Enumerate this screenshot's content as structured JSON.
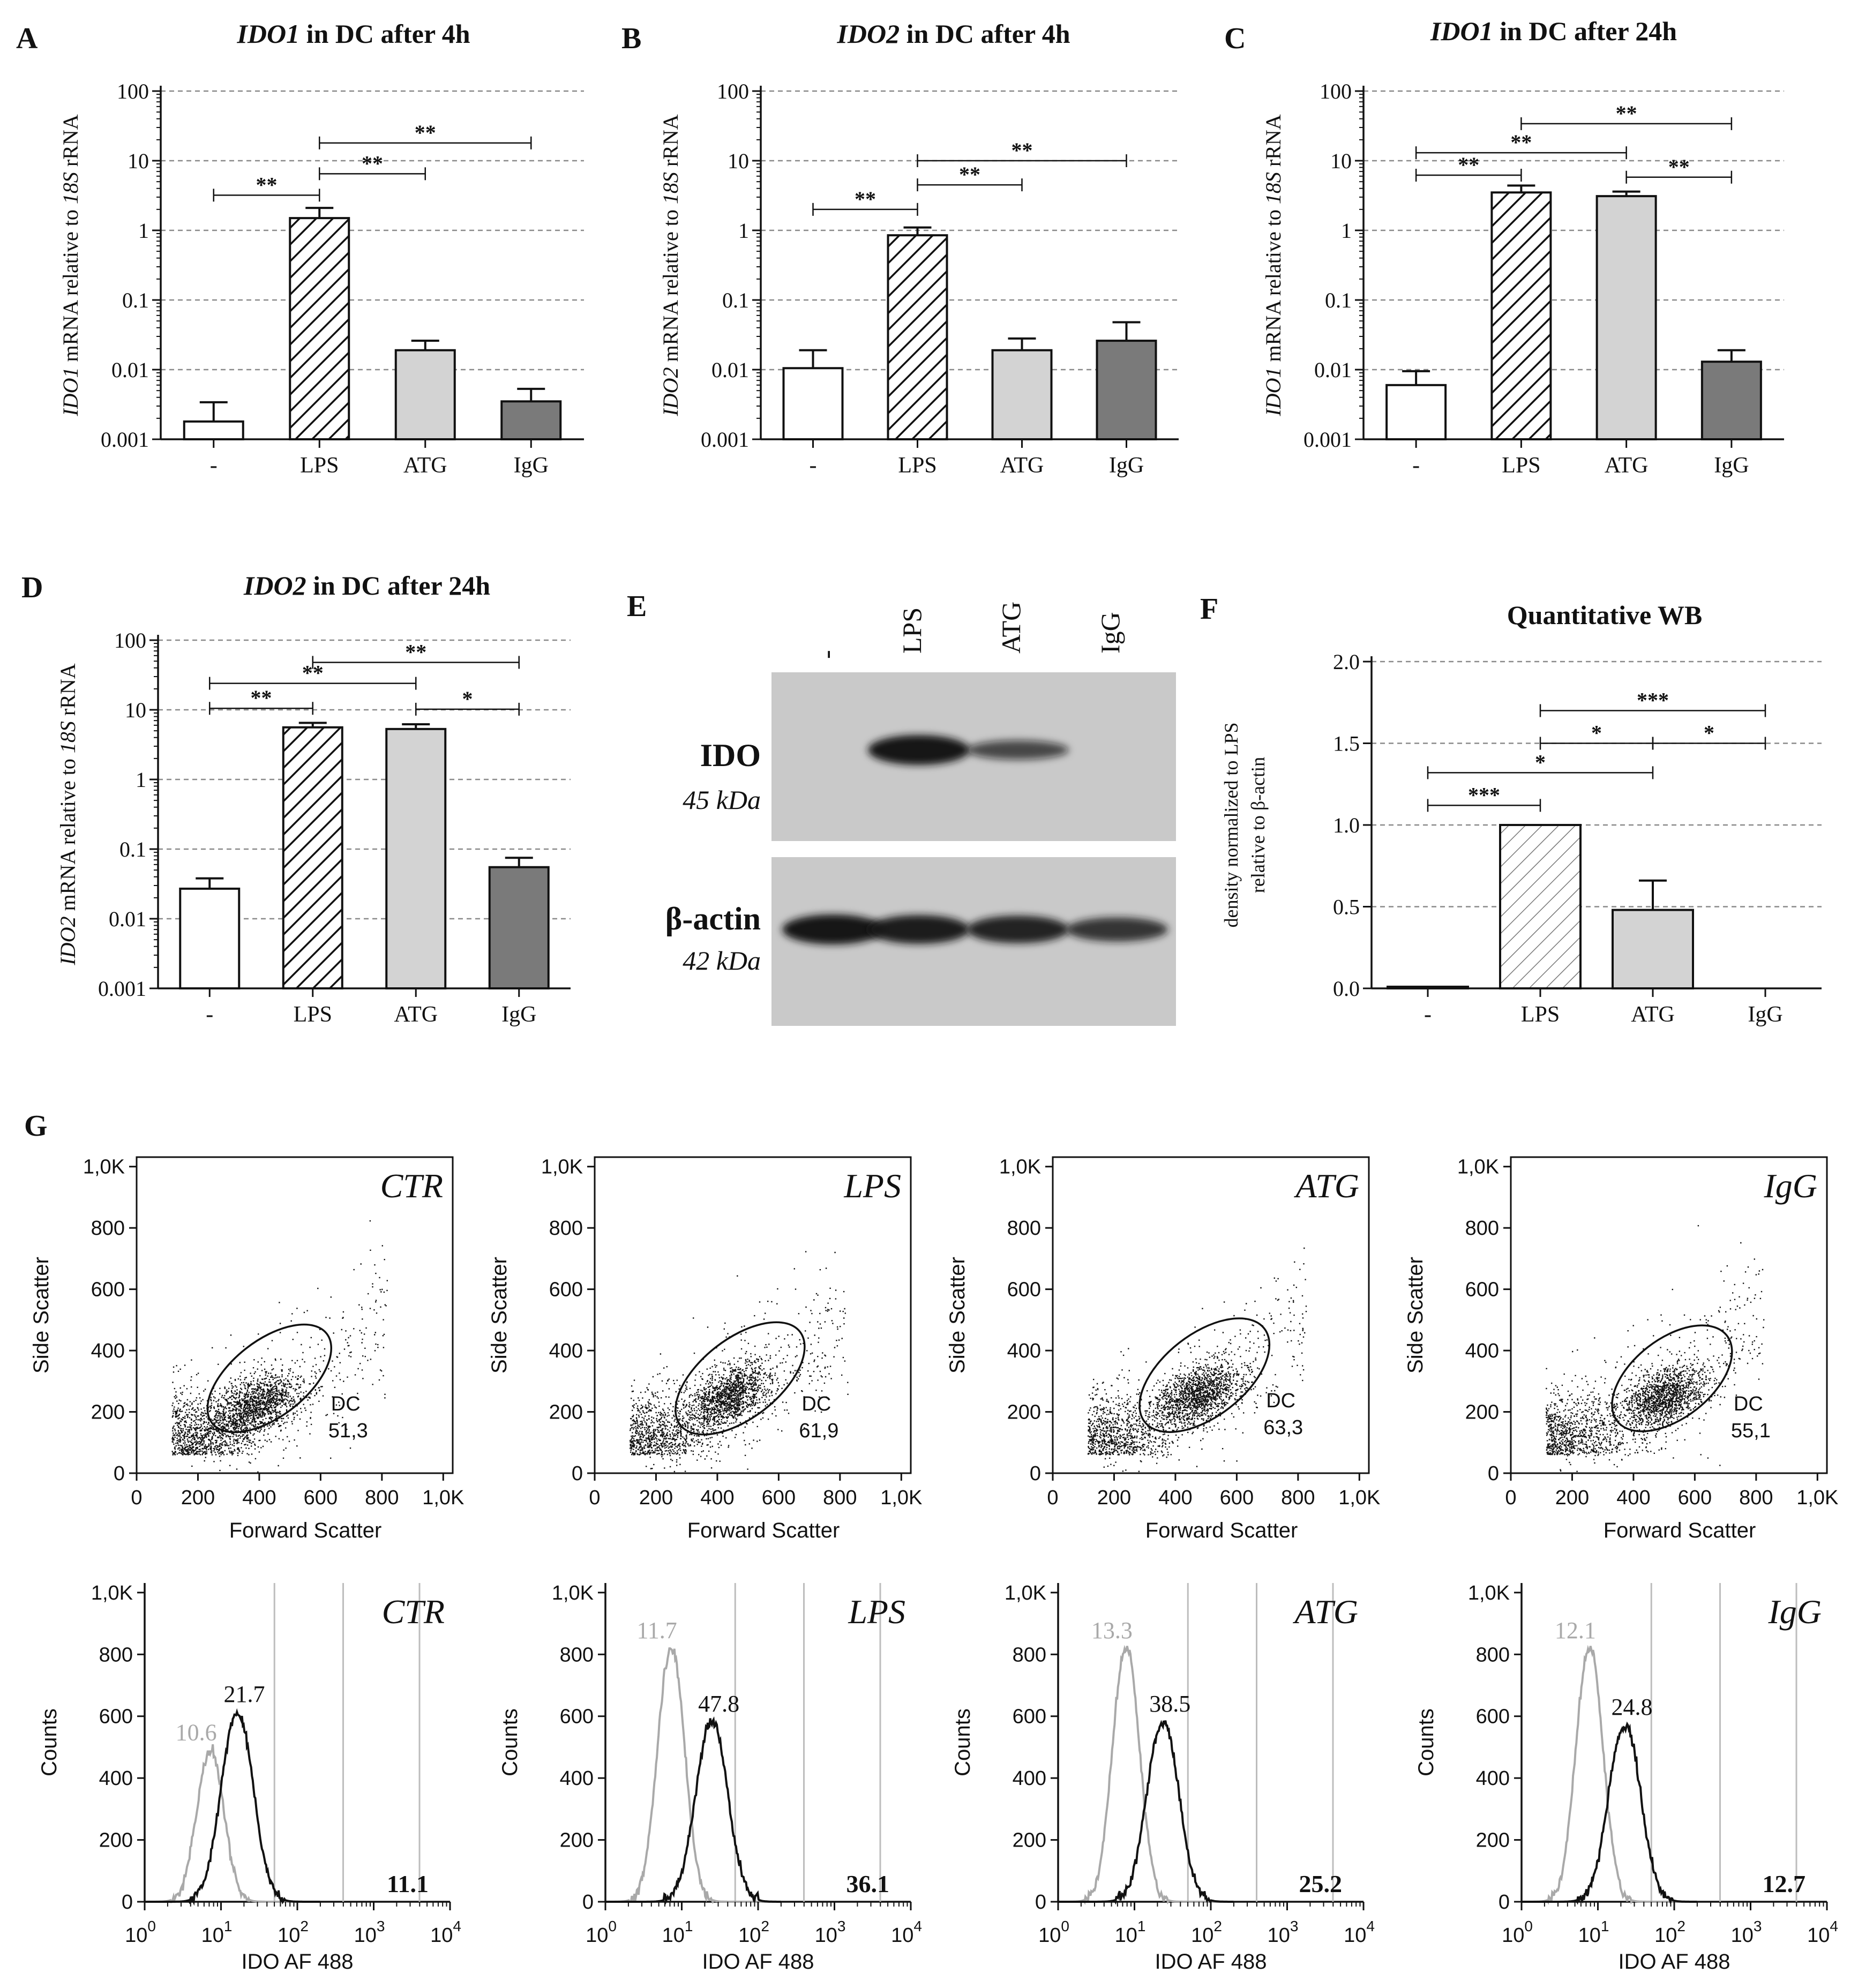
{
  "colors": {
    "ink": "#111111",
    "grid": "#8a8a8a",
    "light_bar": "#d3d3d3",
    "dark_bar": "#7a7a7a",
    "white": "#ffffff",
    "isotype": "#a9a9a9",
    "blot_bg": "#c9c9c9",
    "band": "#141414"
  },
  "chart_data": [
    {
      "id": "A",
      "type": "bar",
      "panel_label": "A",
      "title_gene": "IDO1",
      "title_rest": " in DC after 4h",
      "ylabel_gene": "IDO1",
      "ylabel_mid": " mRNA relative to ",
      "ylabel_ref": "18S",
      "ylabel_end": " rRNA",
      "yscale": "log",
      "ylim": [
        0.001,
        100
      ],
      "ticks": [
        "0.001",
        "0.01",
        "0.1",
        "1",
        "10",
        "100"
      ],
      "categories": [
        "-",
        "LPS",
        "ATG",
        "IgG"
      ],
      "values": [
        0.0018,
        1.5,
        0.019,
        0.0035
      ],
      "errors": [
        0.0034,
        2.1,
        0.026,
        0.0053
      ],
      "fills": [
        "white",
        "hatch",
        "light",
        "dark"
      ],
      "significance": [
        {
          "from": 0,
          "to": 1,
          "label": "**",
          "y": 3.2
        },
        {
          "from": 1,
          "to": 2,
          "label": "**",
          "y": 6.5
        },
        {
          "from": 1,
          "to": 3,
          "label": "**",
          "y": 18
        }
      ]
    },
    {
      "id": "B",
      "type": "bar",
      "panel_label": "B",
      "title_gene": "IDO2",
      "title_rest": " in DC after 4h",
      "ylabel_gene": "IDO2",
      "ylabel_mid": " mRNA relative to ",
      "ylabel_ref": "18S",
      "ylabel_end": " rRNA",
      "yscale": "log",
      "ylim": [
        0.001,
        100
      ],
      "ticks": [
        "0.001",
        "0.01",
        "0.1",
        "1",
        "10",
        "100"
      ],
      "categories": [
        "-",
        "LPS",
        "ATG",
        "IgG"
      ],
      "values": [
        0.0105,
        0.85,
        0.019,
        0.026
      ],
      "errors": [
        0.019,
        1.1,
        0.028,
        0.048
      ],
      "fills": [
        "white",
        "hatch",
        "light",
        "dark"
      ],
      "significance": [
        {
          "from": 0,
          "to": 1,
          "label": "**",
          "y": 2
        },
        {
          "from": 1,
          "to": 2,
          "label": "**",
          "y": 4.5
        },
        {
          "from": 1,
          "to": 3,
          "label": "**",
          "y": 10
        }
      ]
    },
    {
      "id": "C",
      "type": "bar",
      "panel_label": "C",
      "title_gene": "IDO1",
      "title_rest": " in DC after 24h",
      "ylabel_gene": "IDO1",
      "ylabel_mid": " mRNA relative to ",
      "ylabel_ref": "18S",
      "ylabel_end": " rRNA",
      "yscale": "log",
      "ylim": [
        0.001,
        100
      ],
      "ticks": [
        "0.001",
        "0.01",
        "0.1",
        "1",
        "10",
        "100"
      ],
      "categories": [
        "-",
        "LPS",
        "ATG",
        "IgG"
      ],
      "values": [
        0.006,
        3.5,
        3.1,
        0.013
      ],
      "errors": [
        0.0095,
        4.4,
        3.6,
        0.019
      ],
      "fills": [
        "white",
        "hatch",
        "light",
        "dark"
      ],
      "significance": [
        {
          "from": 0,
          "to": 1,
          "label": "**",
          "y": 6.2
        },
        {
          "from": 0,
          "to": 2,
          "label": "**",
          "y": 13
        },
        {
          "from": 1,
          "to": 3,
          "label": "**",
          "y": 34
        },
        {
          "from": 2,
          "to": 3,
          "label": "**",
          "y": 5.8
        }
      ]
    },
    {
      "id": "D",
      "type": "bar",
      "panel_label": "D",
      "title_gene": "IDO2",
      "title_rest": " in DC after 24h",
      "ylabel_gene": "IDO2",
      "ylabel_mid": " mRNA relative to ",
      "ylabel_ref": "18S",
      "ylabel_end": " rRNA",
      "yscale": "log",
      "ylim": [
        0.001,
        100
      ],
      "ticks": [
        "0.001",
        "0.01",
        "0.1",
        "1",
        "10",
        "100"
      ],
      "categories": [
        "-",
        "LPS",
        "ATG",
        "IgG"
      ],
      "values": [
        0.027,
        5.6,
        5.3,
        0.055
      ],
      "errors": [
        0.038,
        6.5,
        6.2,
        0.075
      ],
      "fills": [
        "white",
        "hatch",
        "light",
        "dark"
      ],
      "significance": [
        {
          "from": 0,
          "to": 1,
          "label": "**",
          "y": 10.5
        },
        {
          "from": 0,
          "to": 2,
          "label": "**",
          "y": 24
        },
        {
          "from": 1,
          "to": 3,
          "label": "**",
          "y": 48
        },
        {
          "from": 2,
          "to": 3,
          "label": "*",
          "y": 10.2
        }
      ]
    },
    {
      "id": "F",
      "type": "bar",
      "panel_label": "F",
      "title_gene": "",
      "title_rest": "Quantitative WB",
      "ylabel_lines": [
        "density normalized to LPS",
        "relative to β-actin"
      ],
      "yscale": "linear",
      "ylim": [
        0,
        2
      ],
      "ticks": [
        "0.0",
        "0.5",
        "1.0",
        "1.5",
        "2.0"
      ],
      "categories": [
        "-",
        "LPS",
        "ATG",
        "IgG"
      ],
      "values": [
        0.01,
        1.0,
        0.48,
        0.0
      ],
      "errors": [
        null,
        null,
        0.66,
        null
      ],
      "fills": [
        "white",
        "hatch_light",
        "light",
        "white"
      ],
      "significance": [
        {
          "from": 0,
          "to": 1,
          "label": "***",
          "y": 1.12
        },
        {
          "from": 0,
          "to": 2,
          "label": "*",
          "y": 1.32
        },
        {
          "from": 1,
          "to": 2,
          "label": "*",
          "y": 1.5
        },
        {
          "from": 2,
          "to": 3,
          "label": "*",
          "y": 1.5
        },
        {
          "from": 1,
          "to": 3,
          "label": "***",
          "y": 1.7
        }
      ]
    },
    {
      "id": "G-scatter",
      "type": "scatter",
      "panel_label": "G",
      "xlabel": "Forward Scatter",
      "ylabel": "Side Scatter",
      "xticks": [
        "0",
        "200",
        "400",
        "600",
        "800",
        "1,0K"
      ],
      "yticks": [
        "0",
        "200",
        "400",
        "600",
        "800",
        "1,0K"
      ],
      "xlim": [
        0,
        1000
      ],
      "ylim": [
        0,
        1000
      ],
      "plots": [
        {
          "label": "CTR",
          "gate_name": "DC",
          "gate_value": "51,3",
          "gate_center": [
            420,
            300
          ],
          "gate_radii": [
            230,
            120
          ],
          "cluster_center": [
            370,
            210
          ],
          "seed": 3
        },
        {
          "label": "LPS",
          "gate_name": "DC",
          "gate_value": "61,9",
          "gate_center": [
            460,
            300
          ],
          "gate_radii": [
            240,
            125
          ],
          "cluster_center": [
            420,
            240
          ],
          "seed": 7
        },
        {
          "label": "ATG",
          "gate_name": "DC",
          "gate_value": "63,3",
          "gate_center": [
            480,
            310
          ],
          "gate_radii": [
            240,
            130
          ],
          "cluster_center": [
            460,
            250
          ],
          "seed": 11
        },
        {
          "label": "IgG",
          "gate_name": "DC",
          "gate_value": "55,1",
          "gate_center": [
            510,
            300
          ],
          "gate_radii": [
            220,
            125
          ],
          "cluster_center": [
            480,
            240
          ],
          "seed": 19
        }
      ]
    },
    {
      "id": "G-histogram",
      "type": "line",
      "xlabel": "IDO AF 488",
      "ylabel": "Counts",
      "xscale": "log",
      "xlim": [
        1,
        10000
      ],
      "ylim": [
        0,
        1000
      ],
      "xticks": [
        {
          "base": "10",
          "exp": "0"
        },
        {
          "base": "10",
          "exp": "1"
        },
        {
          "base": "10",
          "exp": "2"
        },
        {
          "base": "10",
          "exp": "3"
        },
        {
          "base": "10",
          "exp": "4"
        }
      ],
      "yticks": [
        "0",
        "200",
        "400",
        "600",
        "800",
        "1,0K"
      ],
      "gridlines_x": [
        1.7,
        2.6,
        3.6
      ],
      "plots": [
        {
          "label": "CTR",
          "isotype_label": "10.6",
          "isotype_peak": [
            0.85,
            470
          ],
          "stain_label": "21.7",
          "stain_peak": [
            1.2,
            590
          ],
          "positive": "11.1"
        },
        {
          "label": "LPS",
          "isotype_label": "11.7",
          "isotype_peak": [
            0.85,
            790
          ],
          "stain_label": "47.8",
          "stain_peak": [
            1.38,
            560
          ],
          "positive": "36.1"
        },
        {
          "label": "ATG",
          "isotype_label": "13.3",
          "isotype_peak": [
            0.88,
            790
          ],
          "stain_label": "38.5",
          "stain_peak": [
            1.36,
            560
          ],
          "positive": "25.2"
        },
        {
          "label": "IgG",
          "isotype_label": "12.1",
          "isotype_peak": [
            0.88,
            790
          ],
          "stain_label": "24.8",
          "stain_peak": [
            1.34,
            550
          ],
          "positive": "12.7"
        }
      ]
    }
  ],
  "western_blot": {
    "panel_label": "E",
    "lanes": [
      "-",
      "LPS",
      "ATG",
      "IgG"
    ],
    "rows": [
      {
        "protein": "IDO",
        "size": "45 kDa",
        "intensities": [
          0,
          1.0,
          0.55,
          0
        ]
      },
      {
        "protein": "β-actin",
        "size": "42 kDa",
        "intensities": [
          1.0,
          0.95,
          0.9,
          0.75
        ]
      }
    ]
  }
}
